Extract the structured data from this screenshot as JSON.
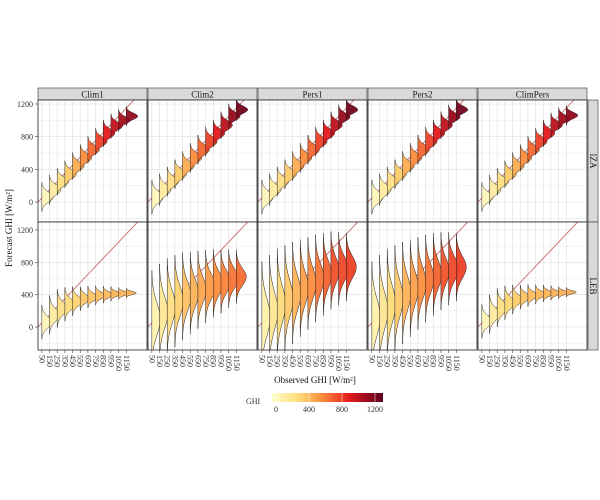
{
  "chart_data": {
    "type": "ridgeline",
    "xlabel": "Observed GHI [W/m²]",
    "ylabel": "Forecast GHI [W/m²]",
    "columns": [
      "Clim1",
      "Clim2",
      "Pers1",
      "Pers2",
      "ClimPers"
    ],
    "rows": [
      "IZA",
      "LEB"
    ],
    "x_ticks": [
      "50",
      "150",
      "250",
      "350",
      "450",
      "550",
      "650",
      "750",
      "850",
      "950",
      "1050",
      "1150"
    ],
    "x_bins": [
      50,
      150,
      250,
      350,
      450,
      550,
      650,
      750,
      850,
      950,
      1050,
      1150
    ],
    "y_ticks": [
      "0",
      "400",
      "800",
      "1200"
    ],
    "ylim": [
      -250,
      1300
    ],
    "xlim": [
      0,
      1420
    ],
    "reference_line": "y = x",
    "grid": true,
    "legend": {
      "title": "GHI",
      "labels": [
        "0",
        "400",
        "800",
        "1200"
      ],
      "range": [
        0,
        1200
      ],
      "placement": "bottom"
    },
    "colors": {
      "low": "#ffffcc",
      "mid1": "#fecc5c",
      "mid2": "#fd8d3c",
      "mid3": "#e31a1c",
      "high": "#800026",
      "reference_line": "#c0504d"
    },
    "panels": {
      "IZA": {
        "Clim1": {
          "mode": [
            60,
            150,
            250,
            340,
            440,
            540,
            640,
            740,
            840,
            930,
            1000,
            1050
          ],
          "spread": [
            60,
            60,
            55,
            55,
            55,
            55,
            55,
            55,
            55,
            50,
            45,
            40
          ]
        },
        "Clim2": {
          "mode": [
            60,
            150,
            250,
            340,
            440,
            540,
            640,
            740,
            840,
            940,
            1050,
            1130
          ],
          "spread": [
            70,
            65,
            60,
            60,
            60,
            60,
            60,
            60,
            55,
            55,
            50,
            45
          ]
        },
        "Pers1": {
          "mode": [
            60,
            150,
            250,
            340,
            440,
            540,
            640,
            740,
            840,
            940,
            1040,
            1130
          ],
          "spread": [
            70,
            65,
            60,
            60,
            60,
            60,
            60,
            60,
            55,
            55,
            50,
            45
          ]
        },
        "Pers2": {
          "mode": [
            60,
            150,
            250,
            340,
            440,
            540,
            640,
            740,
            840,
            940,
            1040,
            1130
          ],
          "spread": [
            70,
            65,
            60,
            60,
            60,
            60,
            60,
            60,
            55,
            55,
            50,
            45
          ]
        },
        "ClimPers": {
          "mode": [
            60,
            150,
            250,
            340,
            440,
            540,
            640,
            740,
            840,
            940,
            1020,
            1060
          ],
          "spread": [
            60,
            60,
            55,
            55,
            55,
            55,
            55,
            55,
            55,
            50,
            45,
            40
          ]
        }
      },
      "LEB": {
        "Clim1": {
          "mode": [
            60,
            150,
            230,
            280,
            320,
            350,
            370,
            390,
            400,
            410,
            415,
            420
          ],
          "spread": [
            70,
            80,
            80,
            70,
            60,
            50,
            45,
            40,
            35,
            30,
            25,
            20
          ]
        },
        "Clim2": {
          "mode": [
            100,
            180,
            250,
            320,
            380,
            420,
            460,
            500,
            540,
            560,
            600,
            620
          ],
          "spread": [
            200,
            200,
            200,
            190,
            180,
            170,
            160,
            150,
            140,
            130,
            120,
            110
          ]
        },
        "Pers1": {
          "mode": [
            120,
            200,
            280,
            350,
            420,
            480,
            540,
            600,
            650,
            700,
            720,
            740
          ],
          "spread": [
            230,
            230,
            230,
            220,
            210,
            200,
            190,
            180,
            170,
            160,
            150,
            140
          ]
        },
        "Pers2": {
          "mode": [
            120,
            200,
            280,
            350,
            420,
            480,
            540,
            600,
            650,
            690,
            720,
            740
          ],
          "spread": [
            230,
            230,
            230,
            220,
            210,
            200,
            190,
            180,
            170,
            160,
            150,
            140
          ]
        },
        "ClimPers": {
          "mode": [
            70,
            160,
            240,
            300,
            340,
            370,
            390,
            405,
            415,
            420,
            425,
            430
          ],
          "spread": [
            70,
            80,
            80,
            70,
            60,
            50,
            45,
            40,
            35,
            30,
            25,
            20
          ]
        }
      }
    }
  }
}
